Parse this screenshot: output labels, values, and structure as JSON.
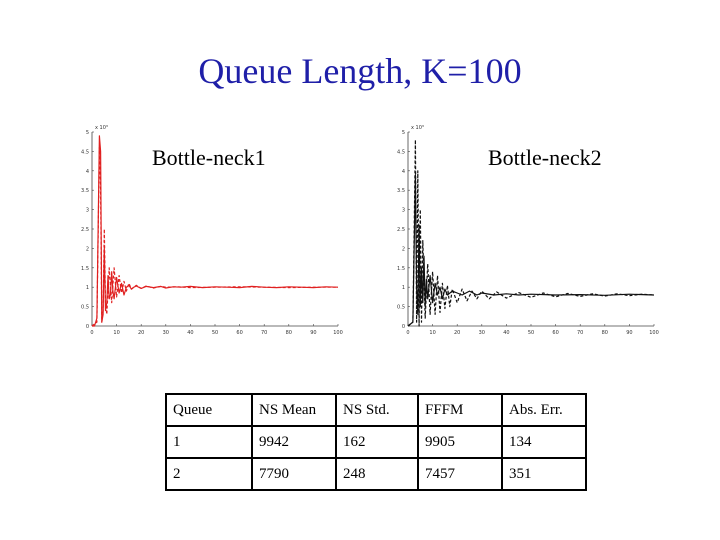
{
  "slide": {
    "title": "Queue Length, K=100"
  },
  "chart_data": [
    {
      "type": "line",
      "title": "Bottle-neck1",
      "xlim": [
        0,
        100
      ],
      "ylim": [
        0,
        5
      ],
      "y_exponent_label": "x 10³",
      "x_ticks": [
        "0",
        "10",
        "20",
        "30",
        "40",
        "50",
        "60",
        "70",
        "80",
        "90",
        "100"
      ],
      "y_ticks": [
        "0",
        "0.5",
        "1",
        "1.5",
        "2",
        "2.5",
        "3",
        "3.5",
        "4",
        "4.5",
        "5"
      ],
      "grid": false,
      "series": [
        {
          "color": "#e02020",
          "style": "solid",
          "x": [
            0,
            1,
            2,
            3,
            3.5,
            4,
            4.5,
            5,
            5.5,
            6,
            6.5,
            7,
            7.5,
            8,
            8.5,
            9,
            10,
            11,
            12,
            13,
            14,
            15,
            16,
            17,
            18,
            20,
            22,
            25,
            28,
            30,
            33,
            36,
            40,
            45,
            50,
            55,
            60,
            65,
            70,
            75,
            80,
            85,
            90,
            95,
            100
          ],
          "y": [
            0,
            0,
            0.2,
            4.9,
            4.5,
            0.1,
            0.3,
            2.0,
            0.4,
            0.6,
            1.3,
            0.7,
            0.8,
            1.4,
            0.9,
            0.7,
            1.25,
            0.85,
            1.1,
            0.8,
            1.0,
            1.05,
            0.95,
            1.0,
            1.03,
            0.97,
            1.02,
            0.99,
            1.02,
            0.98,
            1.01,
            1.0,
            1.02,
            0.99,
            1.01,
            1.0,
            0.99,
            1.02,
            1.0,
            0.99,
            1.01,
            1.0,
            0.99,
            1.01,
            1.0
          ]
        },
        {
          "color": "#e02020",
          "style": "dashed",
          "x": [
            0,
            2,
            3,
            3.5,
            4,
            4.5,
            5,
            5.5,
            6,
            7,
            8,
            9,
            10,
            11,
            12,
            13,
            14,
            15,
            16,
            18,
            20,
            22,
            25,
            28,
            30,
            35,
            40,
            50,
            60,
            70,
            80,
            90,
            100
          ],
          "y": [
            0,
            0.1,
            4.6,
            3.5,
            0.1,
            0.4,
            2.5,
            0.6,
            0.3,
            1.5,
            0.6,
            1.5,
            0.75,
            1.3,
            0.85,
            1.15,
            0.9,
            1.1,
            0.95,
            1.05,
            0.97,
            1.03,
            0.98,
            1.02,
            1.0,
            1.01,
            0.99,
            1.0,
            1.01,
            1.0,
            0.99,
            1.0,
            1.0
          ]
        }
      ]
    },
    {
      "type": "line",
      "title": "Bottle-neck2",
      "xlim": [
        0,
        100
      ],
      "ylim": [
        0,
        5
      ],
      "y_exponent_label": "x 10³",
      "x_ticks": [
        "0",
        "10",
        "20",
        "30",
        "40",
        "50",
        "60",
        "70",
        "80",
        "90",
        "100"
      ],
      "y_ticks": [
        "0",
        "0.5",
        "1",
        "1.5",
        "2",
        "2.5",
        "3",
        "3.5",
        "4",
        "4.5",
        "5"
      ],
      "grid": false,
      "series": [
        {
          "color": "#111111",
          "style": "solid",
          "x": [
            0,
            2,
            3,
            3.5,
            4,
            4.5,
            5,
            5.5,
            6,
            6.5,
            7,
            7.5,
            8,
            9,
            10,
            11,
            12,
            13,
            14,
            15,
            16,
            18,
            20,
            22,
            25,
            28,
            30,
            35,
            40,
            45,
            50,
            60,
            70,
            80,
            90,
            100
          ],
          "y": [
            0,
            0.1,
            3.9,
            1.0,
            0.3,
            2.6,
            0.5,
            1.5,
            0.6,
            1.8,
            0.5,
            1.2,
            0.7,
            1.3,
            0.6,
            1.1,
            0.8,
            1.0,
            0.7,
            0.95,
            0.8,
            0.9,
            0.85,
            0.8,
            0.9,
            0.8,
            0.85,
            0.8,
            0.83,
            0.8,
            0.82,
            0.8,
            0.81,
            0.79,
            0.82,
            0.8
          ]
        },
        {
          "color": "#111111",
          "style": "dashed",
          "x": [
            0,
            2,
            3,
            3.5,
            4,
            4.5,
            5,
            5.5,
            6,
            7,
            8,
            9,
            10,
            11,
            12,
            13,
            14,
            15,
            16,
            17,
            18,
            20,
            22,
            24,
            26,
            28,
            30,
            33,
            36,
            40,
            45,
            50,
            55,
            60,
            65,
            70,
            75,
            80,
            85,
            90,
            95,
            100
          ],
          "y": [
            0,
            0.1,
            4.8,
            0.1,
            4.0,
            0.0,
            3.0,
            0.1,
            2.2,
            0.2,
            1.6,
            0.3,
            1.4,
            0.3,
            1.3,
            0.35,
            1.1,
            0.45,
            1.05,
            0.5,
            0.95,
            0.6,
            0.95,
            0.65,
            0.9,
            0.7,
            0.9,
            0.7,
            0.88,
            0.72,
            0.86,
            0.74,
            0.85,
            0.75,
            0.84,
            0.76,
            0.83,
            0.77,
            0.83,
            0.78,
            0.82,
            0.8
          ]
        }
      ]
    }
  ],
  "table": {
    "headers": [
      "Queue",
      "NS Mean",
      "NS Std.",
      "FFFM",
      "Abs. Err."
    ],
    "rows": [
      [
        "1",
        "9942",
        "162",
        "9905",
        "134"
      ],
      [
        "2",
        "7790",
        "248",
        "7457",
        "351"
      ]
    ]
  }
}
